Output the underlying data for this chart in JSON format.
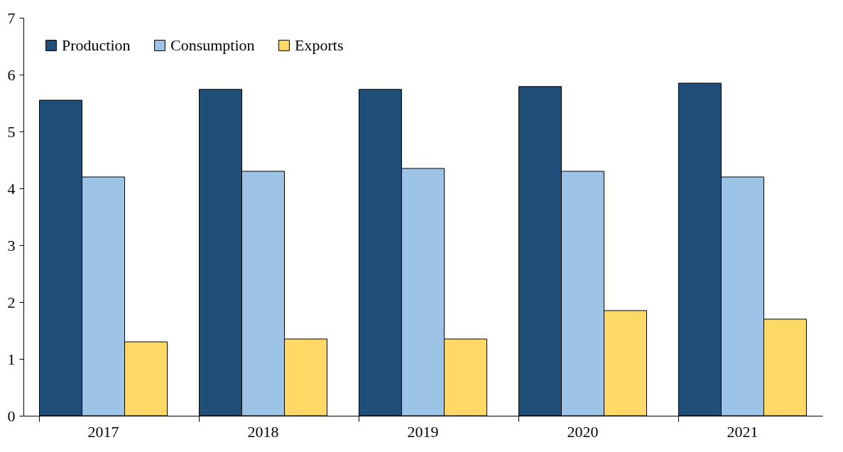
{
  "chart_data": {
    "type": "bar",
    "categories": [
      "2017",
      "2018",
      "2019",
      "2020",
      "2021"
    ],
    "series": [
      {
        "name": "Production",
        "color": "#1f4e79",
        "values": [
          5.55,
          5.74,
          5.74,
          5.79,
          5.85
        ]
      },
      {
        "name": "Consumption",
        "color": "#9dc3e6",
        "values": [
          4.2,
          4.3,
          4.35,
          4.3,
          4.2
        ]
      },
      {
        "name": "Exports",
        "color": "#ffd966",
        "values": [
          1.3,
          1.35,
          1.35,
          1.85,
          1.7
        ]
      }
    ],
    "ylim": [
      0,
      7
    ],
    "yticks": [
      0,
      1,
      2,
      3,
      4,
      5,
      6,
      7
    ],
    "grid": false,
    "legend": "top left"
  }
}
